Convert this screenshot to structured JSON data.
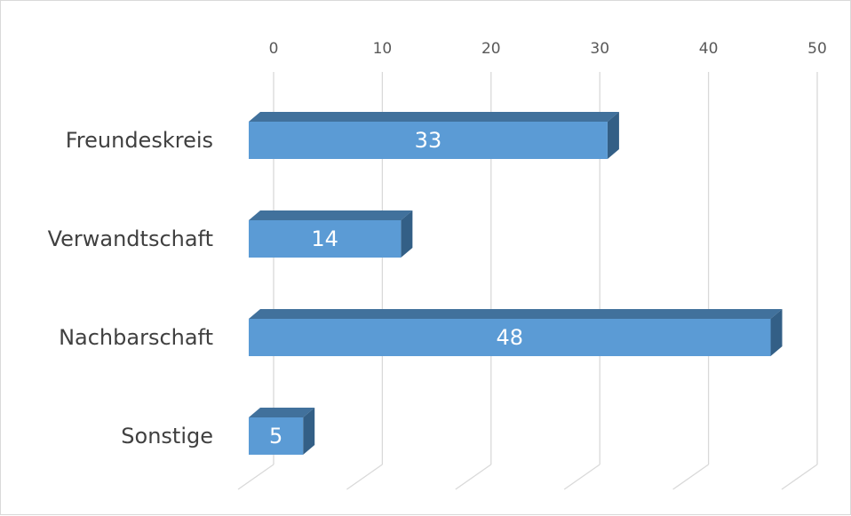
{
  "chart_data": {
    "type": "bar",
    "orientation": "horizontal",
    "categories": [
      "Freundeskreis",
      "Verwandtschaft",
      "Nachbarschaft",
      "Sonstige"
    ],
    "values": [
      33,
      14,
      48,
      5
    ],
    "xlim": [
      0,
      50
    ],
    "xticks": [
      0,
      10,
      20,
      30,
      40,
      50
    ],
    "gridlines": true,
    "style": "3d",
    "colors": {
      "bar_front": "#5b9bd5",
      "bar_top": "#41719c",
      "bar_side": "#335f86",
      "grid": "#d9d9d9"
    },
    "title": "",
    "xlabel": "",
    "ylabel": ""
  }
}
